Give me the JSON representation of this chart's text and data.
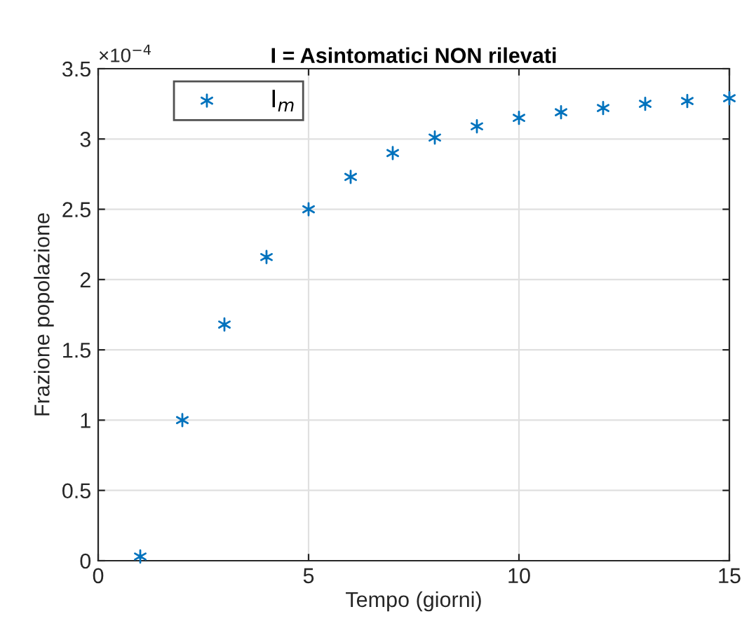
{
  "chart_data": {
    "type": "scatter",
    "title": "I = Asintomatici NON rilevati",
    "xlabel": "Tempo (giorni)",
    "ylabel": "Frazione popolazione",
    "annotations": [
      "×10$^{−4}$"
    ],
    "x": [
      1,
      2,
      3,
      4,
      5,
      6,
      7,
      8,
      9,
      10,
      11,
      12,
      13,
      14,
      15
    ],
    "series": [
      {
        "name": "I$_{m}$",
        "color": "#0072bd",
        "values": [
          0.03,
          1.0,
          1.68,
          2.16,
          2.5,
          2.73,
          2.9,
          3.01,
          3.09,
          3.15,
          3.19,
          3.22,
          3.25,
          3.27,
          3.29
        ]
      }
    ],
    "xlim": [
      0,
      15
    ],
    "xticks": [
      0,
      5,
      10,
      15
    ],
    "ylim": [
      0,
      3.5
    ],
    "yticks": [
      0,
      0.5,
      1,
      1.5,
      2,
      2.5,
      3,
      3.5
    ],
    "grid": true,
    "legend": "top left",
    "marker": "cross"
  }
}
